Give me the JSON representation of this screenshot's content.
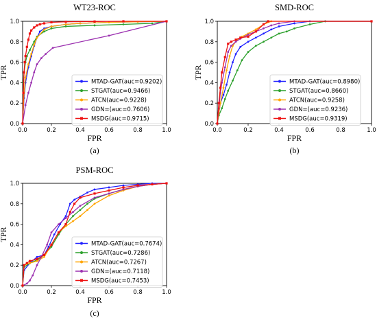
{
  "figure": {
    "panels": [
      {
        "id": "a",
        "caption": "(a)"
      },
      {
        "id": "b",
        "caption": "(b)"
      },
      {
        "id": "c",
        "caption": "(c)"
      }
    ]
  },
  "chart_data": [
    {
      "type": "line",
      "title": "WT23-ROC",
      "caption": "(a)",
      "xlabel": "FPR",
      "ylabel": "TPR",
      "xlim": [
        0,
        1
      ],
      "ylim": [
        0,
        1
      ],
      "xticks": [
        "0.0",
        "0.2",
        "0.4",
        "0.6",
        "0.8",
        "1.0"
      ],
      "yticks": [
        "0.0",
        "0.2",
        "0.4",
        "0.6",
        "0.8",
        "1.0"
      ],
      "grid": false,
      "legend_position": "lower-right",
      "series": [
        {
          "name": "MTAD-GAT(auc=0.9202)",
          "color": "#1f1fff",
          "marker": "circle",
          "x": [
            0,
            0.01,
            0.02,
            0.04,
            0.06,
            0.08,
            0.1,
            0.12,
            0.15,
            0.2,
            0.3,
            0.4,
            0.6,
            0.8,
            1.0
          ],
          "y": [
            0,
            0.25,
            0.4,
            0.55,
            0.66,
            0.76,
            0.84,
            0.9,
            0.93,
            0.95,
            0.97,
            0.98,
            0.99,
            0.995,
            1.0
          ]
        },
        {
          "name": "STGAT(auc=0.9466)",
          "color": "#2ca02c",
          "marker": "circle",
          "x": [
            0,
            0.005,
            0.01,
            0.02,
            0.03,
            0.05,
            0.08,
            0.1,
            0.15,
            0.2,
            0.3,
            0.5,
            0.7,
            0.9,
            1.0
          ],
          "y": [
            0,
            0.4,
            0.5,
            0.6,
            0.66,
            0.72,
            0.8,
            0.85,
            0.9,
            0.93,
            0.95,
            0.96,
            0.97,
            0.98,
            1.0
          ]
        },
        {
          "name": "ATCN(auc=0.9228)",
          "color": "#ffa500",
          "marker": "circle",
          "x": [
            0,
            0.01,
            0.02,
            0.04,
            0.06,
            0.08,
            0.1,
            0.15,
            0.2,
            0.3,
            0.4,
            0.6,
            0.8,
            1.0
          ],
          "y": [
            0,
            0.3,
            0.45,
            0.58,
            0.68,
            0.77,
            0.84,
            0.92,
            0.95,
            0.97,
            0.98,
            0.99,
            0.995,
            1.0
          ]
        },
        {
          "name": "GDN=(auc=0.7606)",
          "color": "#9b30b0",
          "marker": "circle",
          "x": [
            0,
            0.02,
            0.04,
            0.06,
            0.08,
            0.1,
            0.13,
            0.16,
            0.21,
            0.6,
            1.0
          ],
          "y": [
            0,
            0.18,
            0.3,
            0.4,
            0.5,
            0.58,
            0.64,
            0.68,
            0.74,
            0.86,
            1.0
          ]
        },
        {
          "name": "MSDG(auc=0.9715)",
          "color": "#ee1111",
          "marker": "square",
          "x": [
            0,
            0.005,
            0.01,
            0.015,
            0.02,
            0.03,
            0.04,
            0.05,
            0.06,
            0.08,
            0.1,
            0.12,
            0.15,
            0.2,
            0.3,
            0.5,
            0.7,
            1.0
          ],
          "y": [
            0,
            0.3,
            0.5,
            0.6,
            0.66,
            0.75,
            0.82,
            0.88,
            0.91,
            0.94,
            0.96,
            0.97,
            0.98,
            0.99,
            0.995,
            0.998,
            1.0,
            1.0
          ]
        }
      ]
    },
    {
      "type": "line",
      "title": "SMD-ROC",
      "caption": "(b)",
      "xlabel": "FPR",
      "ylabel": "TPR",
      "xlim": [
        0,
        1
      ],
      "ylim": [
        0,
        1
      ],
      "xticks": [
        "0.0",
        "0.2",
        "0.4",
        "0.6",
        "0.8",
        "1.0"
      ],
      "yticks": [
        "0.0",
        "0.2",
        "0.4",
        "0.6",
        "0.8",
        "1.0"
      ],
      "grid": false,
      "legend_position": "lower-right",
      "series": [
        {
          "name": "MTAD-GAT(auc=0.8980)",
          "color": "#1f1fff",
          "marker": "circle",
          "x": [
            0,
            0.01,
            0.02,
            0.04,
            0.06,
            0.08,
            0.1,
            0.12,
            0.15,
            0.2,
            0.25,
            0.3,
            0.35,
            0.4,
            0.5,
            0.6,
            0.7,
            1.0
          ],
          "y": [
            0,
            0.1,
            0.2,
            0.28,
            0.38,
            0.5,
            0.6,
            0.68,
            0.75,
            0.8,
            0.84,
            0.88,
            0.92,
            0.95,
            0.98,
            1.0,
            1.0,
            1.0
          ]
        },
        {
          "name": "STGAT(auc=0.8660)",
          "color": "#2ca02c",
          "marker": "circle",
          "x": [
            0,
            0.01,
            0.03,
            0.05,
            0.07,
            0.1,
            0.13,
            0.16,
            0.2,
            0.25,
            0.3,
            0.35,
            0.4,
            0.45,
            0.5,
            0.6,
            0.7,
            1.0
          ],
          "y": [
            0,
            0.08,
            0.15,
            0.24,
            0.32,
            0.42,
            0.52,
            0.62,
            0.7,
            0.76,
            0.8,
            0.84,
            0.88,
            0.9,
            0.93,
            0.97,
            1.0,
            1.0
          ]
        },
        {
          "name": "ATCN(auc=0.9258)",
          "color": "#ffa500",
          "marker": "circle",
          "x": [
            0,
            0.01,
            0.02,
            0.04,
            0.06,
            0.08,
            0.1,
            0.13,
            0.16,
            0.2,
            0.25,
            0.3,
            0.35,
            1.0
          ],
          "y": [
            0,
            0.1,
            0.2,
            0.35,
            0.52,
            0.66,
            0.76,
            0.82,
            0.85,
            0.88,
            0.92,
            0.97,
            1.0,
            1.0
          ]
        },
        {
          "name": "GDN=(auc=0.9236)",
          "color": "#9b30b0",
          "marker": "circle",
          "x": [
            0,
            0.01,
            0.02,
            0.03,
            0.05,
            0.07,
            0.09,
            0.12,
            0.15,
            0.2,
            0.25,
            0.3,
            0.35,
            0.4,
            0.5,
            1.0
          ],
          "y": [
            0,
            0.15,
            0.3,
            0.4,
            0.55,
            0.7,
            0.76,
            0.8,
            0.83,
            0.87,
            0.9,
            0.93,
            0.96,
            0.98,
            1.0,
            1.0
          ]
        },
        {
          "name": "MSDG(auc=0.9319)",
          "color": "#ee1111",
          "marker": "square",
          "x": [
            0,
            0.01,
            0.02,
            0.03,
            0.05,
            0.07,
            0.09,
            0.12,
            0.15,
            0.2,
            0.25,
            0.3,
            0.33,
            1.0
          ],
          "y": [
            0,
            0.2,
            0.35,
            0.5,
            0.65,
            0.78,
            0.8,
            0.82,
            0.84,
            0.85,
            0.9,
            0.97,
            1.0,
            1.0
          ]
        }
      ]
    },
    {
      "type": "line",
      "title": "PSM-ROC",
      "caption": "(c)",
      "xlabel": "FPR",
      "ylabel": "TPR",
      "xlim": [
        0,
        1
      ],
      "ylim": [
        0,
        1
      ],
      "xticks": [
        "0.0",
        "0.2",
        "0.4",
        "0.6",
        "0.8",
        "1.0"
      ],
      "yticks": [
        "0.0",
        "0.2",
        "0.4",
        "0.6",
        "0.8",
        "1.0"
      ],
      "grid": false,
      "legend_position": "lower-right",
      "series": [
        {
          "name": "MTAD-GAT(auc=0.7674)",
          "color": "#1f1fff",
          "marker": "circle",
          "x": [
            0,
            0.01,
            0.05,
            0.1,
            0.15,
            0.18,
            0.22,
            0.26,
            0.3,
            0.33,
            0.36,
            0.4,
            0.45,
            0.5,
            0.6,
            0.7,
            0.8,
            0.9,
            1.0
          ],
          "y": [
            0,
            0.15,
            0.22,
            0.28,
            0.3,
            0.38,
            0.5,
            0.6,
            0.68,
            0.8,
            0.84,
            0.87,
            0.91,
            0.94,
            0.96,
            0.98,
            0.99,
            1.0,
            1.0
          ]
        },
        {
          "name": "STGAT(auc=0.7286)",
          "color": "#2ca02c",
          "marker": "circle",
          "x": [
            0,
            0.01,
            0.05,
            0.1,
            0.15,
            0.2,
            0.25,
            0.3,
            0.35,
            0.4,
            0.45,
            0.5,
            0.6,
            0.7,
            0.8,
            0.9,
            1.0
          ],
          "y": [
            0,
            0.18,
            0.22,
            0.25,
            0.3,
            0.38,
            0.5,
            0.6,
            0.68,
            0.74,
            0.8,
            0.85,
            0.9,
            0.94,
            0.97,
            0.99,
            1.0
          ]
        },
        {
          "name": "ATCN(auc=0.7267)",
          "color": "#ffa500",
          "marker": "circle",
          "x": [
            0,
            0.01,
            0.05,
            0.1,
            0.15,
            0.2,
            0.25,
            0.3,
            0.35,
            0.4,
            0.45,
            0.5,
            0.6,
            0.7,
            0.8,
            0.9,
            1.0
          ],
          "y": [
            0,
            0.2,
            0.22,
            0.24,
            0.28,
            0.4,
            0.52,
            0.58,
            0.63,
            0.68,
            0.74,
            0.8,
            0.88,
            0.93,
            0.97,
            0.99,
            1.0
          ]
        },
        {
          "name": "GDN=(auc=0.7118)",
          "color": "#9b30b0",
          "marker": "circle",
          "x": [
            0,
            0.03,
            0.05,
            0.07,
            0.1,
            0.13,
            0.17,
            0.2,
            0.25,
            0.3,
            0.35,
            0.4,
            0.5,
            0.6,
            0.7,
            0.8,
            0.9,
            1.0
          ],
          "y": [
            0,
            0.02,
            0.05,
            0.1,
            0.2,
            0.28,
            0.4,
            0.52,
            0.6,
            0.66,
            0.72,
            0.78,
            0.86,
            0.9,
            0.94,
            0.97,
            0.99,
            1.0
          ]
        },
        {
          "name": "MSDG(auc=0.7453)",
          "color": "#ee1111",
          "marker": "square",
          "x": [
            0,
            0.01,
            0.03,
            0.05,
            0.1,
            0.15,
            0.2,
            0.25,
            0.3,
            0.33,
            0.36,
            0.4,
            0.5,
            0.6,
            0.7,
            0.8,
            0.9,
            1.0
          ],
          "y": [
            0,
            0.2,
            0.22,
            0.24,
            0.26,
            0.3,
            0.4,
            0.52,
            0.6,
            0.72,
            0.8,
            0.86,
            0.9,
            0.93,
            0.96,
            0.98,
            0.99,
            1.0
          ]
        }
      ]
    }
  ]
}
